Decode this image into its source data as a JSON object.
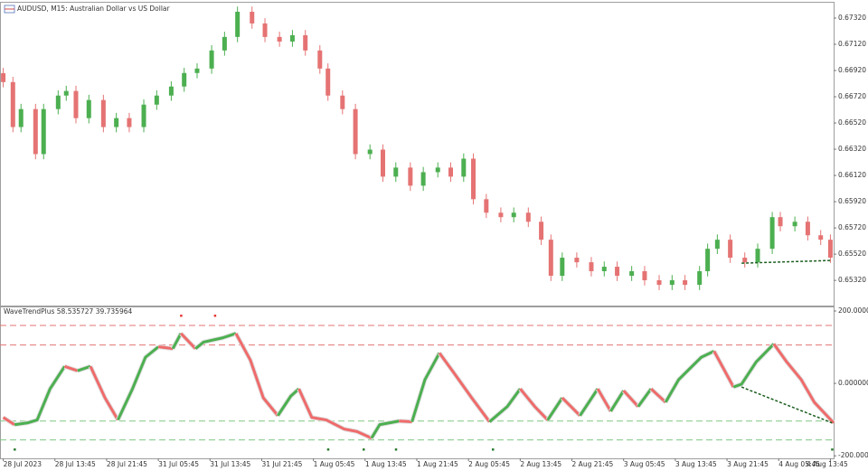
{
  "chart_data": [
    {
      "type": "candlestick",
      "title": "AUDUSD, M15:  Australian Dollar vs US Dollar",
      "x": [
        0,
        6,
        11,
        20,
        25,
        34,
        39,
        45,
        53,
        62,
        70,
        78,
        87,
        95,
        104,
        112,
        120,
        129,
        137,
        145,
        154,
        162,
        171,
        179,
        187,
        196,
        201,
        210,
        218,
        227,
        235,
        243,
        252,
        260,
        269,
        277,
        285,
        291,
        299,
        308,
        316,
        325,
        333,
        339,
        346,
        355,
        364,
        372,
        380,
        389,
        397,
        406,
        414,
        422,
        431,
        436,
        442,
        450,
        459,
        467,
        476,
        481,
        490,
        498,
        506,
        512
      ],
      "open": [
        0.669,
        0.66832,
        0.66489,
        0.66626,
        0.66283,
        0.66626,
        0.66729,
        0.66764,
        0.66557,
        0.66695,
        0.66489,
        0.66557,
        0.66489,
        0.6666,
        0.66729,
        0.66798,
        0.66901,
        0.66935,
        0.67073,
        0.67176,
        0.67368,
        0.67279,
        0.67176,
        0.67141,
        0.67189,
        0.67073,
        0.66935,
        0.66729,
        0.66626,
        0.66283,
        0.66317,
        0.66111,
        0.6618,
        0.66042,
        0.66145,
        0.6618,
        0.66111,
        0.66248,
        0.65939,
        0.65836,
        0.65802,
        0.65836,
        0.65767,
        0.6563,
        0.65355,
        0.65493,
        0.65458,
        0.6539,
        0.65424,
        0.65355,
        0.6539,
        0.65321,
        0.65286,
        0.65321,
        0.65286,
        0.6539,
        0.65561,
        0.6563,
        0.65493,
        0.65458,
        0.65561,
        0.65802,
        0.65733,
        0.65767,
        0.65664,
        0.6563
      ],
      "high": [
        0.6694,
        0.66872,
        0.66666,
        0.66666,
        0.66666,
        0.66769,
        0.66804,
        0.66804,
        0.66735,
        0.66735,
        0.66597,
        0.66597,
        0.667,
        0.66769,
        0.66838,
        0.66941,
        0.66975,
        0.67113,
        0.67216,
        0.67408,
        0.67408,
        0.67319,
        0.67216,
        0.67229,
        0.67229,
        0.67113,
        0.66975,
        0.66769,
        0.66666,
        0.66357,
        0.66357,
        0.6622,
        0.6622,
        0.66185,
        0.6622,
        0.6622,
        0.66288,
        0.66288,
        0.65979,
        0.65876,
        0.65876,
        0.65876,
        0.65807,
        0.6567,
        0.65533,
        0.65533,
        0.65498,
        0.65464,
        0.65464,
        0.6543,
        0.6543,
        0.65361,
        0.65361,
        0.65361,
        0.6543,
        0.65601,
        0.6567,
        0.6567,
        0.65533,
        0.65601,
        0.65842,
        0.65842,
        0.65807,
        0.65807,
        0.65704,
        0.6567
      ],
      "low": [
        0.66792,
        0.66449,
        0.66449,
        0.66243,
        0.66243,
        0.66586,
        0.66689,
        0.66517,
        0.66517,
        0.66449,
        0.66449,
        0.66449,
        0.66449,
        0.6662,
        0.66689,
        0.66758,
        0.66861,
        0.66895,
        0.67033,
        0.67136,
        0.67239,
        0.67136,
        0.67101,
        0.67101,
        0.67033,
        0.66895,
        0.66689,
        0.66586,
        0.66243,
        0.66243,
        0.66071,
        0.66071,
        0.66002,
        0.66002,
        0.66105,
        0.66071,
        0.66071,
        0.65899,
        0.65796,
        0.65762,
        0.65762,
        0.65727,
        0.6559,
        0.65315,
        0.65315,
        0.65418,
        0.6535,
        0.6535,
        0.65315,
        0.65315,
        0.65281,
        0.65246,
        0.65246,
        0.65246,
        0.65246,
        0.6535,
        0.65521,
        0.65453,
        0.65418,
        0.65418,
        0.65521,
        0.65693,
        0.65693,
        0.65624,
        0.6559,
        0.65453
      ],
      "close": [
        0.66832,
        0.66489,
        0.66626,
        0.66283,
        0.66626,
        0.66729,
        0.66764,
        0.66557,
        0.66695,
        0.66489,
        0.66557,
        0.66489,
        0.6666,
        0.66729,
        0.66798,
        0.66901,
        0.66935,
        0.67073,
        0.67176,
        0.67368,
        0.67279,
        0.67176,
        0.67141,
        0.67189,
        0.67073,
        0.66935,
        0.66729,
        0.66626,
        0.66283,
        0.66317,
        0.66111,
        0.6618,
        0.66042,
        0.66145,
        0.6618,
        0.66111,
        0.66248,
        0.65939,
        0.65836,
        0.65802,
        0.65836,
        0.65767,
        0.6563,
        0.65355,
        0.65493,
        0.65458,
        0.6539,
        0.65424,
        0.65355,
        0.6539,
        0.65321,
        0.65286,
        0.65321,
        0.65286,
        0.6539,
        0.65561,
        0.6563,
        0.65493,
        0.65458,
        0.65561,
        0.65802,
        0.65733,
        0.65767,
        0.65664,
        0.6563,
        0.65493
      ],
      "up_color": "#4caf50",
      "down_color": "#e57373",
      "xlim": [
        -2,
        514
      ],
      "ylim": [
        0.65128,
        0.67437
      ],
      "yticks": [
        {
          "value": 0.6732,
          "label": "0.67320"
        },
        {
          "value": 0.6712,
          "label": "0.67120"
        },
        {
          "value": 0.6692,
          "label": "0.66920"
        },
        {
          "value": 0.6672,
          "label": "0.66720"
        },
        {
          "value": 0.6652,
          "label": "0.66520"
        },
        {
          "value": 0.6632,
          "label": "0.66320"
        },
        {
          "value": 0.6612,
          "label": "0.66120"
        },
        {
          "value": 0.6592,
          "label": "0.65920"
        },
        {
          "value": 0.6572,
          "label": "0.65720"
        },
        {
          "value": 0.6552,
          "label": "0.65520"
        },
        {
          "value": 0.6532,
          "label": "0.65320"
        }
      ],
      "divergence": {
        "x": [
          457,
          513
        ],
        "values": [
          0.65451,
          0.65472
        ],
        "color": "#1b5e20"
      }
    },
    {
      "type": "line",
      "title": "WaveTrendPlus 58.535727 39.735964",
      "x": [
        0,
        7,
        15,
        21,
        29,
        38,
        46,
        54,
        63,
        71,
        80,
        88,
        96,
        105,
        110,
        119,
        124,
        136,
        144,
        153,
        161,
        170,
        178,
        183,
        191,
        200,
        211,
        219,
        228,
        233,
        245,
        253,
        261,
        270,
        278,
        290,
        301,
        312,
        320,
        329,
        337,
        346,
        357,
        368,
        376,
        384,
        393,
        401,
        410,
        418,
        432,
        440,
        452,
        457,
        466,
        477,
        485,
        494,
        502,
        514
      ],
      "values": [
        -94,
        -114,
        -109,
        -101,
        -15,
        47,
        35,
        47,
        -40,
        -101,
        -15,
        72,
        101,
        96,
        138,
        96,
        114,
        126,
        138,
        64,
        -40,
        -89,
        -35,
        -15,
        -94,
        -101,
        -126,
        -133,
        -151,
        -114,
        -104,
        -106,
        10,
        84,
        35,
        -40,
        -106,
        -64,
        -15,
        -64,
        -101,
        -40,
        -89,
        -15,
        -77,
        -20,
        -64,
        -15,
        -52,
        10,
        72,
        89,
        -10,
        -2,
        59,
        109,
        59,
        10,
        -52,
        -109
      ],
      "up_color": "#4caf50",
      "down_color": "#ef6b6b",
      "xlim": [
        -2,
        514
      ],
      "ylim": [
        -207,
        210
      ],
      "yticks": [
        {
          "value": 200,
          "label": "200.000000"
        },
        {
          "value": 0,
          "label": "0.000000"
        },
        {
          "value": -200,
          "label": "-200.000000"
        }
      ],
      "levels": [
        {
          "value": 160,
          "color": "#e57373"
        },
        {
          "value": 106,
          "color": "#e57373"
        },
        {
          "value": -104,
          "color": "#81c784"
        },
        {
          "value": -156,
          "color": "#81c784"
        }
      ],
      "sell_signals": [
        110,
        131
      ],
      "buy_signals": [
        7,
        201,
        223,
        243,
        303,
        513
      ],
      "sell_color": "#e53935",
      "buy_color": "#2e7d32",
      "divergence": {
        "x": [
          457,
          513
        ],
        "values": [
          -10,
          -109
        ],
        "color": "#1b5e20"
      },
      "xticks": [
        {
          "value": 0,
          "label": "28 Jul 2023"
        },
        {
          "value": 32,
          "label": "28 Jul 13:45"
        },
        {
          "value": 64,
          "label": "28 Jul 21:45"
        },
        {
          "value": 96,
          "label": "31 Jul 05:45"
        },
        {
          "value": 128,
          "label": "31 Jul 13:45"
        },
        {
          "value": 160,
          "label": "31 Jul 21:45"
        },
        {
          "value": 192,
          "label": "1 Aug 05:45"
        },
        {
          "value": 224,
          "label": "1 Aug 13:45"
        },
        {
          "value": 256,
          "label": "1 Aug 21:45"
        },
        {
          "value": 288,
          "label": "2 Aug 05:45"
        },
        {
          "value": 320,
          "label": "2 Aug 13:45"
        },
        {
          "value": 352,
          "label": "2 Aug 21:45"
        },
        {
          "value": 384,
          "label": "3 Aug 05:45"
        },
        {
          "value": 416,
          "label": "3 Aug 13:45"
        },
        {
          "value": 448,
          "label": "3 Aug 21:45"
        },
        {
          "value": 480,
          "label": "4 Aug 05:45"
        },
        {
          "value": 512,
          "label": "4 Aug 13:45"
        }
      ]
    }
  ]
}
